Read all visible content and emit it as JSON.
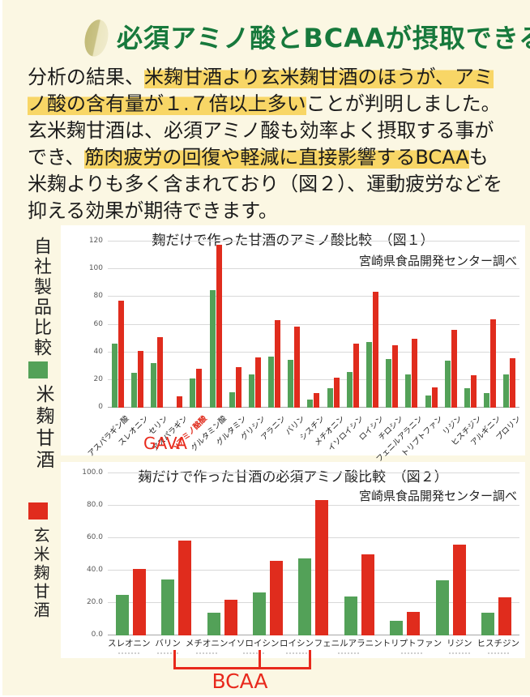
{
  "header": {
    "title": "必須アミノ酸とBCAAが摂取できる",
    "title_color": "#17793c",
    "icon": "rice-grain-icon"
  },
  "paragraph": {
    "highlight_color": "#f8d666",
    "segments": [
      {
        "text": "分析の結果、",
        "highlight": false
      },
      {
        "text": "米麹甘酒より玄米麹甘酒のほうが、アミノ酸の含有量が１.７倍以上多い",
        "highlight": true
      },
      {
        "text": "ことが判明しました。",
        "highlight": false,
        "break_after": true
      },
      {
        "text": "玄米麹甘酒は、必須アミノ酸も効率よく摂取する事ができ、",
        "highlight": false
      },
      {
        "text": "筋肉疲労の回復や軽減に直接影響するBCAA",
        "highlight": true
      },
      {
        "text": "も米麹よりも多く含まれており（図２）、運動疲労などを抑える効果が期待できます。",
        "highlight": false
      }
    ]
  },
  "sidebar": {
    "title": "自社製品比較",
    "legend": [
      {
        "label": "米麹甘酒",
        "color": "#53a158"
      },
      {
        "label": "玄米麹甘酒",
        "color": "#e02c1d"
      }
    ]
  },
  "chart_data": [
    {
      "type": "bar",
      "title": "麹だけで作った甘酒のアミノ酸比較　（図１）",
      "source": "宮崎県食品開発センター調べ",
      "xlabel": "",
      "ylabel": "",
      "ylim": [
        0,
        120
      ],
      "grid": true,
      "ytick_values": [
        0,
        20,
        40,
        60,
        80,
        100,
        120
      ],
      "ytick_labels": [
        "0",
        "20",
        "40",
        "60",
        "80",
        "100",
        "120"
      ],
      "categories": [
        "アスパラギン酸",
        "スレオニン",
        "セリン",
        "アスパラギン",
        "γアミノ酪酸",
        "グルタミン酸",
        "グルタミン",
        "グリシン",
        "アラニン",
        "バリン",
        "シスチン",
        "メチオニン",
        "イソロイシン",
        "ロイシン",
        "チロシン",
        "フェニルアラニン",
        "トリプトファン",
        "リジン",
        "ヒスチジン",
        "アルギニン",
        "プロリン"
      ],
      "special_category_index": 4,
      "series": [
        {
          "name": "米麹甘酒",
          "color": "#53a158",
          "values": [
            46,
            25,
            32,
            0,
            21,
            85,
            11,
            24,
            37,
            34.5,
            6,
            14,
            26,
            47.5,
            35,
            24,
            9,
            34,
            14,
            10.5,
            24
          ]
        },
        {
          "name": "玄米麹甘酒",
          "color": "#e02c1d",
          "values": [
            77.5,
            41,
            51,
            8,
            28,
            117.5,
            29,
            36.5,
            63.5,
            58.5,
            10.5,
            21.5,
            46,
            84,
            45,
            50,
            14.5,
            56,
            23.5,
            64,
            35.5
          ]
        }
      ],
      "annotation": {
        "text": "GAVA",
        "color": "#e8291c",
        "target_category": "γアミノ酪酸"
      }
    },
    {
      "type": "bar",
      "title": "麹だけで作った甘酒の必須アミノ酸比較　（図２）",
      "source": "宮崎県食品開発センター調べ",
      "xlabel": "",
      "ylabel": "",
      "ylim": [
        0,
        100
      ],
      "grid": true,
      "ytick_values": [
        0,
        20,
        40,
        60,
        80,
        100
      ],
      "ytick_labels": [
        "0.0",
        "20.0",
        "40.0",
        "60.0",
        "80.0",
        "100.0"
      ],
      "categories": [
        "スレオニン",
        "バリン",
        "メチオニン",
        "イソロイシン",
        "ロイシン",
        "フェニルアラニン",
        "トリプトファン",
        "リジン",
        "ヒスチジン"
      ],
      "series": [
        {
          "name": "米麹甘酒",
          "color": "#53a158",
          "values": [
            25,
            34.5,
            14,
            26.5,
            47.5,
            24,
            9,
            34,
            14
          ]
        },
        {
          "name": "玄米麹甘酒",
          "color": "#e02c1d",
          "values": [
            41,
            58.5,
            22,
            46,
            83.5,
            50,
            14.5,
            56,
            23.5
          ]
        }
      ],
      "annotation": {
        "text": "BCAA",
        "color": "#e8291c",
        "bracket_categories": [
          "バリン",
          "イソロイシン",
          "ロイシン"
        ]
      }
    }
  ]
}
